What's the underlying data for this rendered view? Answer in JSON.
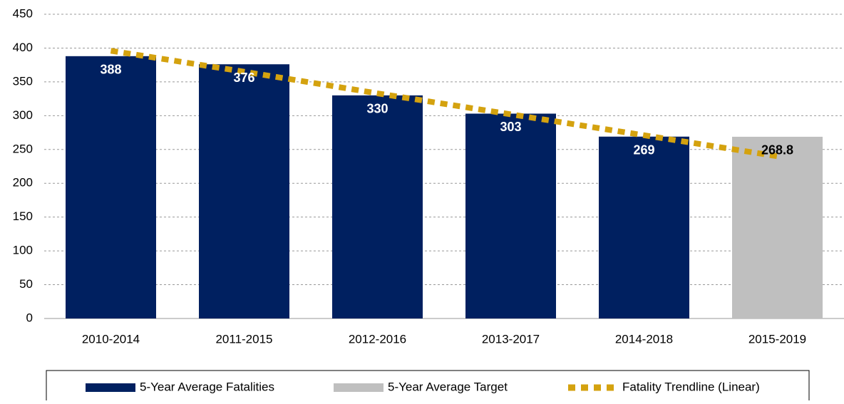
{
  "chart_data": {
    "type": "bar",
    "categories": [
      "2010-2014",
      "2011-2015",
      "2012-2016",
      "2013-2017",
      "2014-2018",
      "2015-2019"
    ],
    "series": [
      {
        "name": "5-Year Average Fatalities",
        "color": "#002060",
        "label_color": "#ffffff",
        "values": [
          388,
          376,
          330,
          303,
          269,
          null
        ]
      },
      {
        "name": "5-Year Average Target",
        "color": "#bfbfbf",
        "label_color": "#000000",
        "values": [
          null,
          null,
          null,
          null,
          null,
          268.8
        ]
      },
      {
        "name": "Fatality Trendline (Linear)",
        "type": "line",
        "color": "#d4a20f",
        "dashed": true,
        "values": [
          396,
          365,
          333,
          302,
          271,
          240
        ]
      }
    ],
    "ylim": [
      0,
      450
    ],
    "yticks": [
      0,
      50,
      100,
      150,
      200,
      250,
      300,
      350,
      400,
      450
    ],
    "grid": true,
    "legend": "bottom"
  }
}
